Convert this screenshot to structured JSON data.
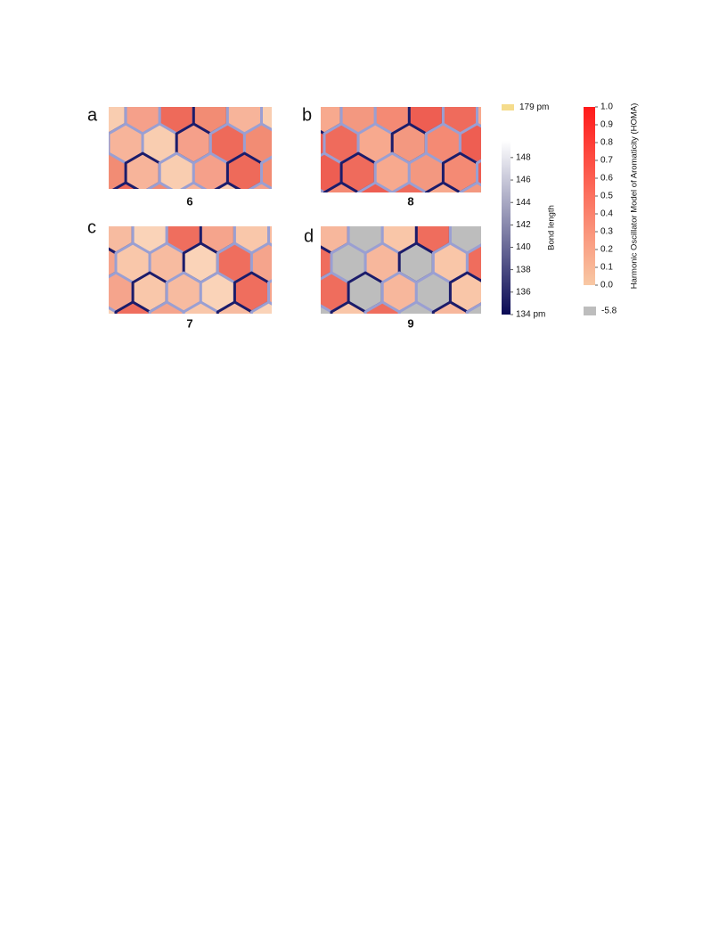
{
  "panels": [
    {
      "label": "a",
      "compound": "6"
    },
    {
      "label": "b",
      "compound": "8"
    },
    {
      "label": "c",
      "compound": "7"
    },
    {
      "label": "d",
      "compound": "9"
    }
  ],
  "chart_data": [
    {
      "type": "colorbar",
      "title": "Bond length",
      "ylim": [
        134,
        149.5
      ],
      "yticks": [
        {
          "value": 134,
          "label": "134 pm"
        },
        136,
        138,
        140,
        142,
        144,
        146,
        148
      ],
      "colors": [
        "#0a0a55",
        "#ffffff"
      ],
      "special": {
        "value": 179,
        "label": "179 pm",
        "color": "#f5dc8c"
      }
    },
    {
      "type": "colorbar",
      "title": "Harmonic Oscillator Model of Aromaticity (HOMA)",
      "ylim": [
        0,
        1
      ],
      "yticks": [
        {
          "value": 0,
          "label": "0.0"
        },
        0.1,
        0.2,
        0.3,
        0.4,
        0.5,
        0.6,
        0.7,
        0.8,
        0.9,
        {
          "value": 1,
          "label": "1.0"
        }
      ],
      "colors": [
        "#f8c8a4",
        "#ff1a1a"
      ],
      "special": {
        "value": -5.8,
        "color": "#bdbdbd"
      }
    }
  ]
}
